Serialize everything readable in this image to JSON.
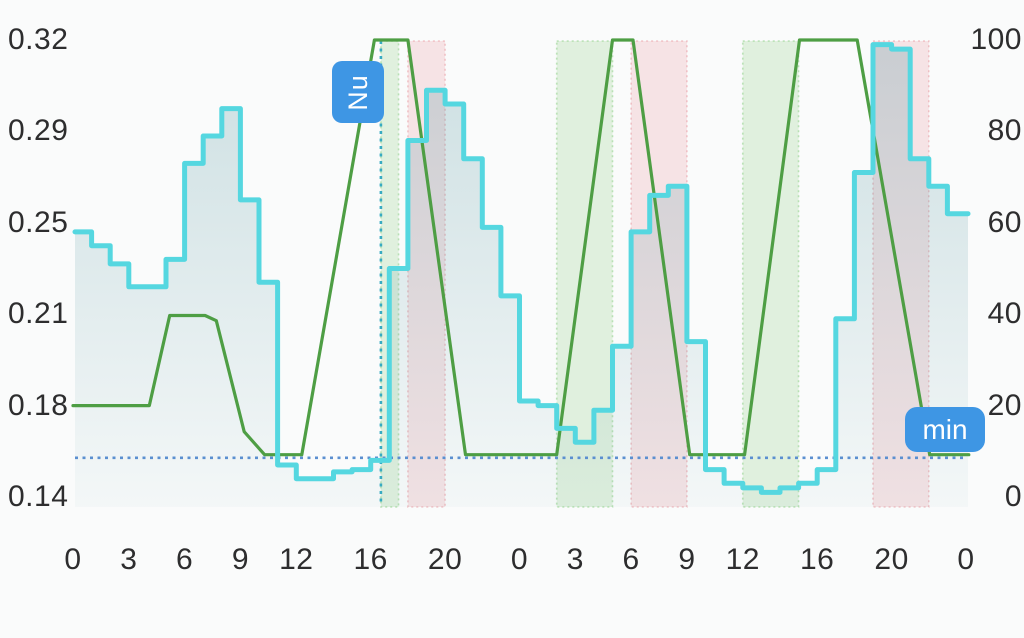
{
  "chart_data": {
    "type": "area",
    "title": "",
    "description": "48-hour forecast chart: cyan hourly step-area series (right axis 0-100) and green curve (left axis 0.14-0.32), with a dotted 'now' vertical marker labeled Nu, a dotted horizontal minimum line labeled min, and alternating green/pink highlighted time bands",
    "left_axis": {
      "tick_labels": [
        "0.32",
        "0.29",
        "0.25",
        "0.21",
        "0.18",
        "0.14"
      ],
      "min": 0.145,
      "max": 0.32
    },
    "right_axis": {
      "tick_labels": [
        "100",
        "80",
        "60",
        "40",
        "20",
        "0"
      ],
      "min": 0,
      "max": 100
    },
    "x_axis": {
      "tick_hours": [
        0,
        3,
        6,
        9,
        12,
        16,
        20,
        24,
        27,
        30,
        33,
        36,
        40,
        44,
        48
      ],
      "tick_labels": [
        "0",
        "3",
        "6",
        "9",
        "12",
        "16",
        "20",
        "0",
        "3",
        "6",
        "9",
        "12",
        "16",
        "20",
        "0"
      ],
      "min_hour": 0,
      "max_hour": 48
    },
    "series": [
      {
        "name": "cyan-step-series",
        "type": "step-area",
        "axis": "right",
        "hourly_values": [
          58,
          55,
          51,
          46,
          46,
          52,
          73,
          79,
          85,
          65,
          47,
          7,
          4,
          4,
          5.5,
          6,
          8,
          50,
          78,
          89,
          86,
          74,
          59,
          44,
          21,
          20,
          15,
          12,
          19,
          33,
          58,
          66,
          68,
          34,
          6,
          3,
          2,
          1,
          2,
          3,
          6,
          39,
          71,
          99,
          98,
          74,
          68,
          62
        ]
      },
      {
        "name": "green-line-series",
        "type": "line",
        "axis": "left",
        "points": [
          [
            0,
            0.18
          ],
          [
            4.1,
            0.18
          ],
          [
            5.2,
            0.2145
          ],
          [
            7.1,
            0.2145
          ],
          [
            7.7,
            0.2125
          ],
          [
            9.2,
            0.17
          ],
          [
            10.3,
            0.1612
          ],
          [
            12.3,
            0.1612
          ],
          [
            16.2,
            0.32
          ],
          [
            18.0,
            0.32
          ],
          [
            21.1,
            0.1612
          ],
          [
            26.0,
            0.1612
          ],
          [
            29.0,
            0.32
          ],
          [
            30.1,
            0.32
          ],
          [
            33.15,
            0.1612
          ],
          [
            36.1,
            0.1612
          ],
          [
            39.05,
            0.32
          ],
          [
            42.15,
            0.32
          ],
          [
            46.05,
            0.1612
          ],
          [
            48.15,
            0.1612
          ]
        ]
      }
    ],
    "bands": [
      {
        "kind": "green",
        "from_hour": 16.55,
        "to_hour": 17.5
      },
      {
        "kind": "pink",
        "from_hour": 18,
        "to_hour": 20
      },
      {
        "kind": "green",
        "from_hour": 26,
        "to_hour": 29
      },
      {
        "kind": "pink",
        "from_hour": 30,
        "to_hour": 33
      },
      {
        "kind": "green",
        "from_hour": 36,
        "to_hour": 39
      },
      {
        "kind": "pink",
        "from_hour": 43,
        "to_hour": 46
      }
    ],
    "markers": {
      "now": {
        "label": "Nu",
        "hour": 16.55
      },
      "min": {
        "label": "min",
        "value": 0.16
      }
    },
    "colors": {
      "background": "#fafbfb",
      "cyan_line": "#55d7e0",
      "area_top": "rgba(84,150,160,0.28)",
      "area_bottom": "rgba(84,150,160,0.04)",
      "green_line": "#4e9e44",
      "green_band": "rgba(120,200,110,0.20)",
      "green_band_edge": "rgba(120,200,110,0.45)",
      "pink_band": "rgba(228,130,140,0.19)",
      "pink_band_edge": "rgba(228,130,140,0.42)",
      "min_line": "#5b8fd0",
      "now_line": "#38abc2",
      "badge": "#3e96e4",
      "badge_text": "#ffffff",
      "axis_text": "#2d2d2e"
    }
  }
}
